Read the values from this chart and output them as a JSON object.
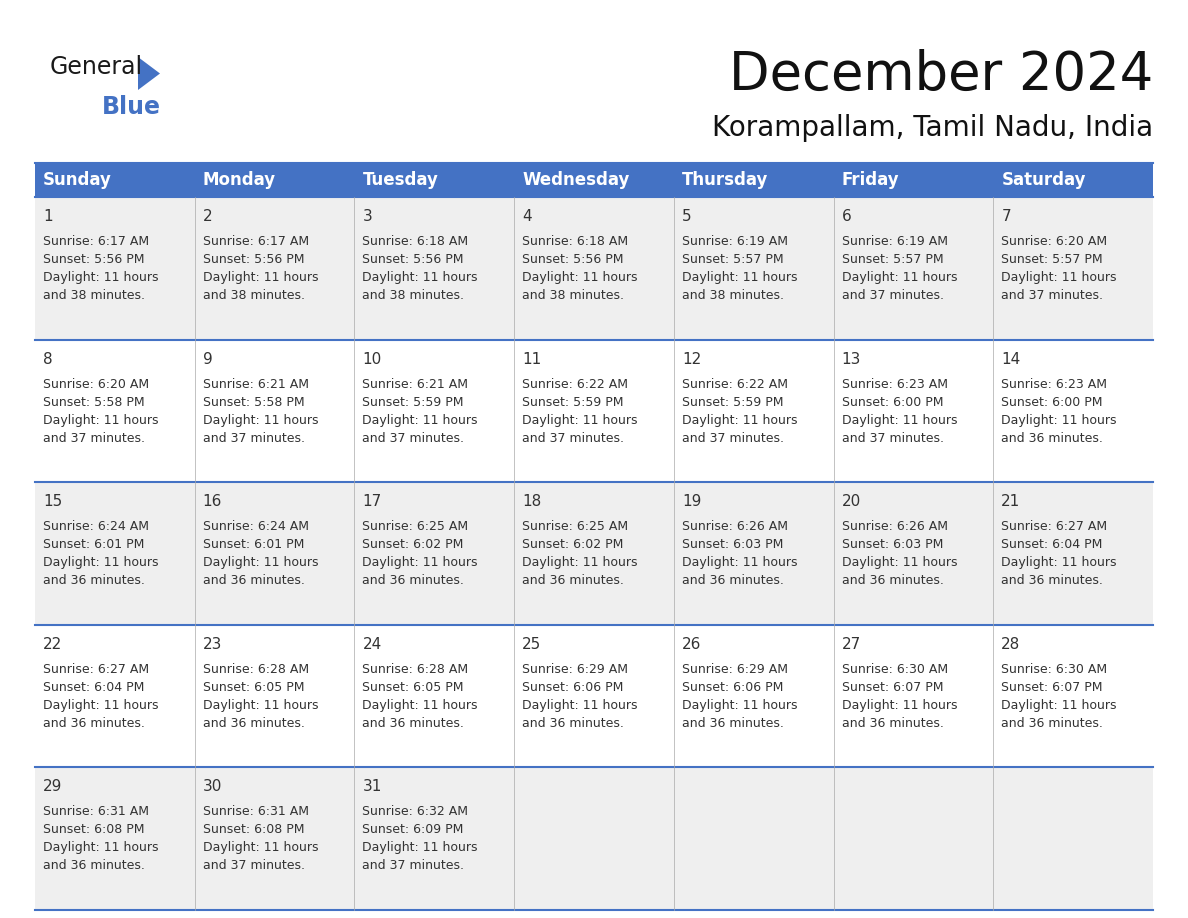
{
  "title": "December 2024",
  "subtitle": "Korampallam, Tamil Nadu, India",
  "header_bg": "#4472C4",
  "header_text_color": "#FFFFFF",
  "row_bg_odd": "#EFEFEF",
  "row_bg_even": "#FFFFFF",
  "border_color": "#4472C4",
  "days_of_week": [
    "Sunday",
    "Monday",
    "Tuesday",
    "Wednesday",
    "Thursday",
    "Friday",
    "Saturday"
  ],
  "weeks": [
    [
      {
        "day": 1,
        "sunrise": "6:17 AM",
        "sunset": "5:56 PM",
        "daylight": "11 hours and 38 minutes."
      },
      {
        "day": 2,
        "sunrise": "6:17 AM",
        "sunset": "5:56 PM",
        "daylight": "11 hours and 38 minutes."
      },
      {
        "day": 3,
        "sunrise": "6:18 AM",
        "sunset": "5:56 PM",
        "daylight": "11 hours and 38 minutes."
      },
      {
        "day": 4,
        "sunrise": "6:18 AM",
        "sunset": "5:56 PM",
        "daylight": "11 hours and 38 minutes."
      },
      {
        "day": 5,
        "sunrise": "6:19 AM",
        "sunset": "5:57 PM",
        "daylight": "11 hours and 38 minutes."
      },
      {
        "day": 6,
        "sunrise": "6:19 AM",
        "sunset": "5:57 PM",
        "daylight": "11 hours and 37 minutes."
      },
      {
        "day": 7,
        "sunrise": "6:20 AM",
        "sunset": "5:57 PM",
        "daylight": "11 hours and 37 minutes."
      }
    ],
    [
      {
        "day": 8,
        "sunrise": "6:20 AM",
        "sunset": "5:58 PM",
        "daylight": "11 hours and 37 minutes."
      },
      {
        "day": 9,
        "sunrise": "6:21 AM",
        "sunset": "5:58 PM",
        "daylight": "11 hours and 37 minutes."
      },
      {
        "day": 10,
        "sunrise": "6:21 AM",
        "sunset": "5:59 PM",
        "daylight": "11 hours and 37 minutes."
      },
      {
        "day": 11,
        "sunrise": "6:22 AM",
        "sunset": "5:59 PM",
        "daylight": "11 hours and 37 minutes."
      },
      {
        "day": 12,
        "sunrise": "6:22 AM",
        "sunset": "5:59 PM",
        "daylight": "11 hours and 37 minutes."
      },
      {
        "day": 13,
        "sunrise": "6:23 AM",
        "sunset": "6:00 PM",
        "daylight": "11 hours and 37 minutes."
      },
      {
        "day": 14,
        "sunrise": "6:23 AM",
        "sunset": "6:00 PM",
        "daylight": "11 hours and 36 minutes."
      }
    ],
    [
      {
        "day": 15,
        "sunrise": "6:24 AM",
        "sunset": "6:01 PM",
        "daylight": "11 hours and 36 minutes."
      },
      {
        "day": 16,
        "sunrise": "6:24 AM",
        "sunset": "6:01 PM",
        "daylight": "11 hours and 36 minutes."
      },
      {
        "day": 17,
        "sunrise": "6:25 AM",
        "sunset": "6:02 PM",
        "daylight": "11 hours and 36 minutes."
      },
      {
        "day": 18,
        "sunrise": "6:25 AM",
        "sunset": "6:02 PM",
        "daylight": "11 hours and 36 minutes."
      },
      {
        "day": 19,
        "sunrise": "6:26 AM",
        "sunset": "6:03 PM",
        "daylight": "11 hours and 36 minutes."
      },
      {
        "day": 20,
        "sunrise": "6:26 AM",
        "sunset": "6:03 PM",
        "daylight": "11 hours and 36 minutes."
      },
      {
        "day": 21,
        "sunrise": "6:27 AM",
        "sunset": "6:04 PM",
        "daylight": "11 hours and 36 minutes."
      }
    ],
    [
      {
        "day": 22,
        "sunrise": "6:27 AM",
        "sunset": "6:04 PM",
        "daylight": "11 hours and 36 minutes."
      },
      {
        "day": 23,
        "sunrise": "6:28 AM",
        "sunset": "6:05 PM",
        "daylight": "11 hours and 36 minutes."
      },
      {
        "day": 24,
        "sunrise": "6:28 AM",
        "sunset": "6:05 PM",
        "daylight": "11 hours and 36 minutes."
      },
      {
        "day": 25,
        "sunrise": "6:29 AM",
        "sunset": "6:06 PM",
        "daylight": "11 hours and 36 minutes."
      },
      {
        "day": 26,
        "sunrise": "6:29 AM",
        "sunset": "6:06 PM",
        "daylight": "11 hours and 36 minutes."
      },
      {
        "day": 27,
        "sunrise": "6:30 AM",
        "sunset": "6:07 PM",
        "daylight": "11 hours and 36 minutes."
      },
      {
        "day": 28,
        "sunrise": "6:30 AM",
        "sunset": "6:07 PM",
        "daylight": "11 hours and 36 minutes."
      }
    ],
    [
      {
        "day": 29,
        "sunrise": "6:31 AM",
        "sunset": "6:08 PM",
        "daylight": "11 hours and 36 minutes."
      },
      {
        "day": 30,
        "sunrise": "6:31 AM",
        "sunset": "6:08 PM",
        "daylight": "11 hours and 37 minutes."
      },
      {
        "day": 31,
        "sunrise": "6:32 AM",
        "sunset": "6:09 PM",
        "daylight": "11 hours and 37 minutes."
      },
      null,
      null,
      null,
      null
    ]
  ],
  "logo_text_general": "General",
  "logo_text_blue": "Blue",
  "logo_color_general": "#1a1a1a",
  "logo_color_blue": "#4472C4",
  "logo_triangle_color": "#4472C4",
  "title_fontsize": 38,
  "subtitle_fontsize": 20,
  "header_fontsize": 12,
  "day_num_fontsize": 11,
  "cell_text_fontsize": 9
}
